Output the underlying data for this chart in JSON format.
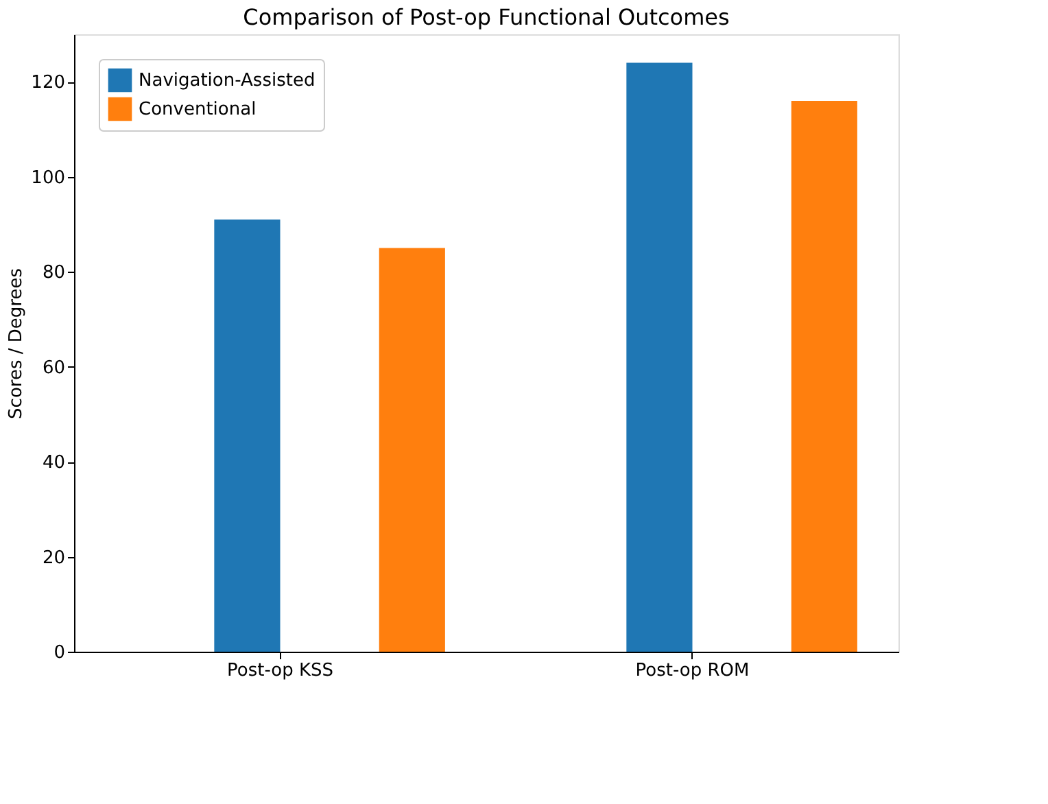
{
  "chart_data": {
    "type": "bar",
    "title": "Comparison of Post-op Functional Outcomes",
    "ylabel": "Scores / Degrees",
    "categories": [
      "Post-op KSS",
      "Post-op ROM"
    ],
    "series": [
      {
        "name": "Navigation-Assisted",
        "color": "#1f77b4",
        "values": [
          91,
          124
        ]
      },
      {
        "name": "Conventional",
        "color": "#ff7f0e",
        "values": [
          85,
          116
        ]
      }
    ],
    "ylim": [
      0,
      130
    ],
    "yticks": [
      0,
      20,
      40,
      60,
      80,
      100,
      120
    ],
    "grid": false,
    "legend": "top left"
  }
}
